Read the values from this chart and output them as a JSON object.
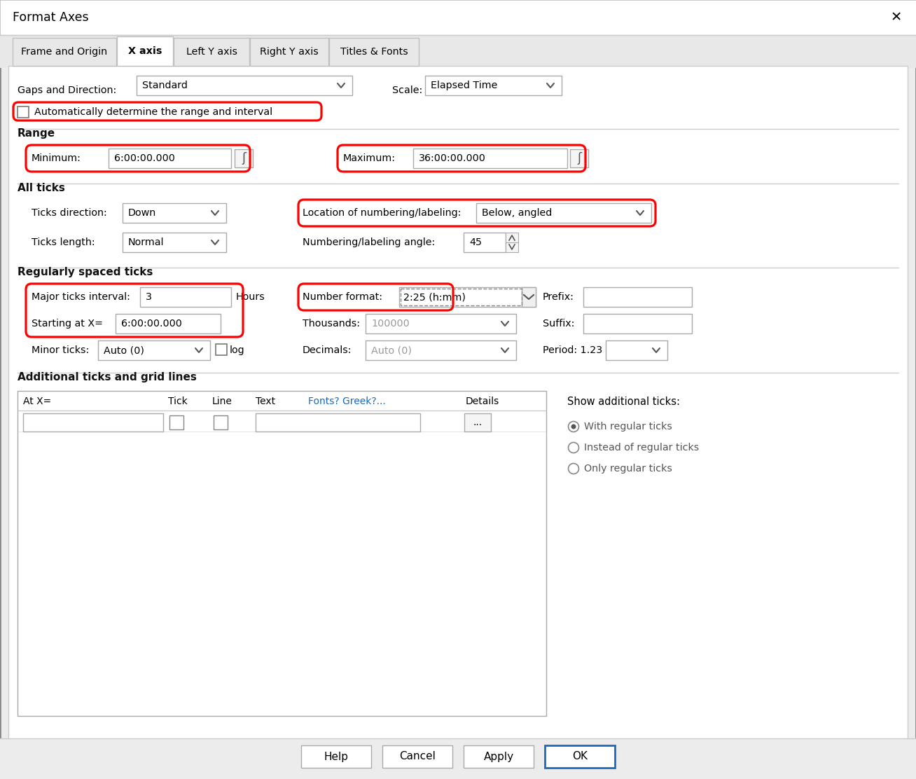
{
  "title": "Format Axes",
  "bg_color": "#ececec",
  "dialog_bg": "#ffffff",
  "tab_bar_bg": "#e0e0e0",
  "tabs": [
    "Frame and Origin",
    "X axis",
    "Left Y axis",
    "Right Y axis",
    "Titles & Fonts"
  ],
  "active_tab": "X axis",
  "gaps_direction_label": "Gaps and Direction:",
  "gaps_direction_value": "Standard",
  "scale_label": "Scale:",
  "scale_value": "Elapsed Time",
  "auto_checkbox_label": "Automatically determine the range and interval",
  "range_section": "Range",
  "minimum_label": "Minimum:",
  "minimum_value": "6:00:00.000",
  "maximum_label": "Maximum:",
  "maximum_value": "36:00:00.000",
  "all_ticks_section": "All ticks",
  "ticks_direction_label": "Ticks direction:",
  "ticks_direction_value": "Down",
  "location_label": "Location of numbering/labeling:",
  "location_value": "Below, angled",
  "ticks_length_label": "Ticks length:",
  "ticks_length_value": "Normal",
  "numbering_angle_label": "Numbering/labeling angle:",
  "numbering_angle_value": "45",
  "regularly_spaced_section": "Regularly spaced ticks",
  "major_ticks_label": "Major ticks interval:",
  "major_ticks_value": "3",
  "major_ticks_unit": "Hours",
  "starting_at_label": "Starting at X=",
  "starting_at_value": "6:00:00.000",
  "number_format_label": "Number format:",
  "number_format_value": "2:25 (h:mm)",
  "prefix_label": "Prefix:",
  "minor_ticks_label": "Minor ticks:",
  "minor_ticks_value": "Auto (0)",
  "log_label": "log",
  "thousands_label": "Thousands:",
  "thousands_value": "100000",
  "suffix_label": "Suffix:",
  "decimals_label": "Decimals:",
  "decimals_value": "Auto (0)",
  "period_label": "Period: 1.23",
  "additional_section": "Additional ticks and grid lines",
  "table_headers": [
    "At X=",
    "Tick",
    "Line",
    "Text",
    "Fonts? Greek?...",
    "Details"
  ],
  "show_additional_label": "Show additional ticks:",
  "radio_options": [
    "With regular ticks",
    "Instead of regular ticks",
    "Only regular ticks"
  ],
  "buttons": [
    "Help",
    "Cancel",
    "Apply",
    "OK"
  ]
}
